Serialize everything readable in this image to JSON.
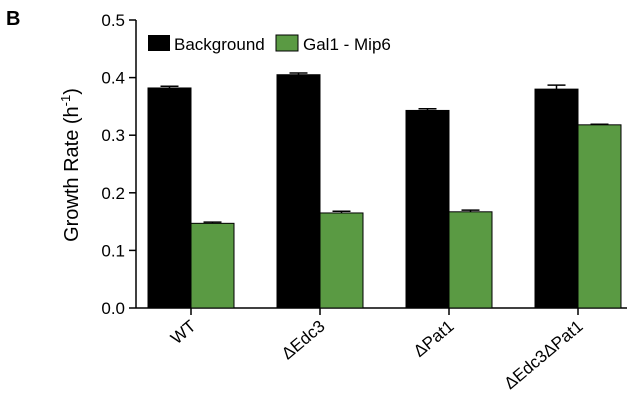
{
  "panel_label": "B",
  "chart_data": {
    "type": "bar",
    "categories": [
      "WT",
      "ΔEdc3",
      "ΔPat1",
      "ΔEdc3ΔPat1"
    ],
    "series": [
      {
        "name": "Background",
        "color": "#000000",
        "values": [
          0.382,
          0.405,
          0.343,
          0.38
        ],
        "errors": [
          0.003,
          0.003,
          0.003,
          0.007
        ]
      },
      {
        "name": "Gal1 - Mip6",
        "color": "#5a9a43",
        "values": [
          0.147,
          0.165,
          0.167,
          0.318
        ],
        "errors": [
          0.002,
          0.003,
          0.003,
          0.001
        ]
      }
    ],
    "ylabel_main": "Growth Rate  (h",
    "ylabel_sup": "-1",
    "ylabel_end": ")",
    "xlabel": "",
    "ylim": [
      0.0,
      0.5
    ],
    "yticks": [
      "0.0",
      "0.1",
      "0.2",
      "0.3",
      "0.4",
      "0.5"
    ],
    "grid": false,
    "legend_position": "top-left"
  }
}
